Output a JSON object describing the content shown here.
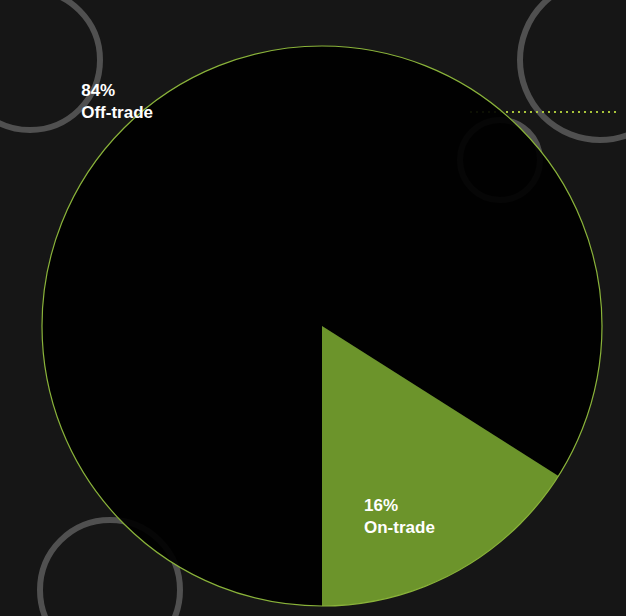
{
  "chart_data": {
    "type": "pie",
    "categories": [
      "Off-trade",
      "On-trade"
    ],
    "values": [
      84,
      16
    ],
    "value_labels": [
      "84%",
      "16%"
    ],
    "colors": [
      "#000000",
      "#76a22e"
    ],
    "data_labels": true
  }
}
